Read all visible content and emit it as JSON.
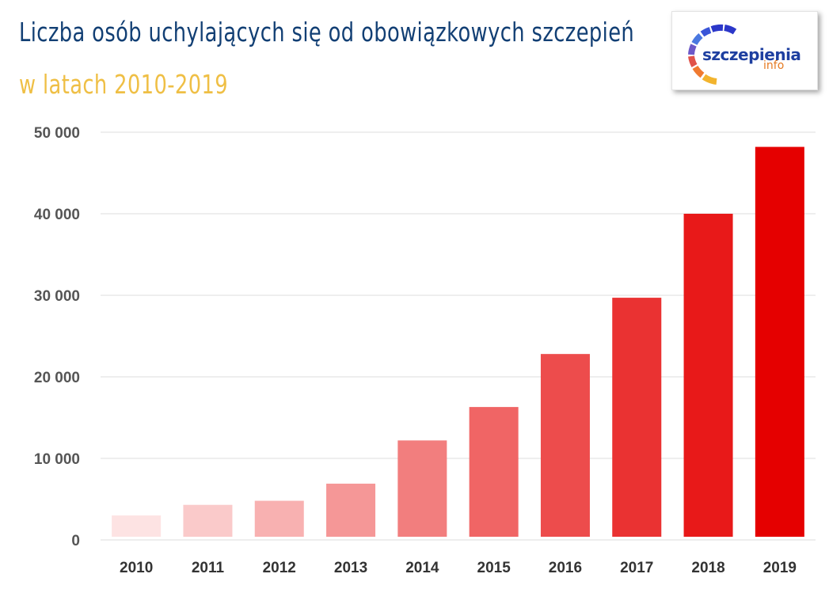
{
  "header": {
    "title": "Liczba osób uchylających się od obowiązkowych szczepień",
    "subtitle": "w latach 2010-2019"
  },
  "logo": {
    "name": "szczepienia",
    "sub": "info",
    "icon": "szczepienia-info-ring-logo"
  },
  "colors": {
    "title": "#123f74",
    "subtitle": "#efbf45",
    "bar_min": "#fde3e3",
    "bar_max": "#e50000",
    "grid": "#dcdcdc"
  },
  "chart_data": {
    "type": "bar",
    "title": "Liczba osób uchylających się od obowiązkowych szczepień",
    "subtitle": "w latach 2010-2019",
    "xlabel": "",
    "ylabel": "",
    "categories": [
      "2010",
      "2011",
      "2012",
      "2013",
      "2014",
      "2015",
      "2016",
      "2017",
      "2018",
      "2019"
    ],
    "values": [
      3000,
      4300,
      4800,
      6900,
      12200,
      16300,
      22800,
      29700,
      40000,
      48200
    ],
    "ylim": [
      0,
      50000
    ],
    "yticks": [
      0,
      10000,
      20000,
      30000,
      40000,
      50000
    ],
    "ytick_labels": [
      "0",
      "10 000",
      "20 000",
      "30 000",
      "40 000",
      "50 000"
    ],
    "grid": true,
    "legend": "none"
  }
}
